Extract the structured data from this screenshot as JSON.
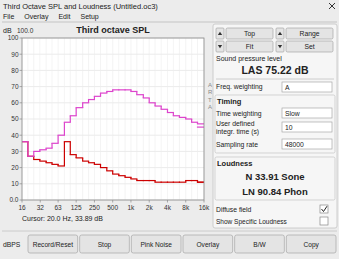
{
  "chart_data": {
    "type": "line",
    "title": "Third octave SPL",
    "ylabel": "dB",
    "log": "x",
    "grid": true,
    "line_style": "steps",
    "x": [
      16,
      20,
      25,
      31.5,
      40,
      50,
      63,
      80,
      100,
      125,
      160,
      200,
      250,
      315,
      400,
      500,
      630,
      800,
      1000,
      1250,
      1600,
      2000,
      2500,
      3150,
      4000,
      5000,
      6300,
      8000,
      10000,
      12500,
      16000
    ],
    "xlim": [
      16,
      16000
    ],
    "xticks": [
      16,
      32,
      63,
      125,
      250,
      500,
      {
        "value": 1000,
        "label": "1k"
      },
      {
        "value": 2000,
        "label": "2k"
      },
      {
        "value": 4000,
        "label": "4k"
      },
      {
        "value": 8000,
        "label": "8k"
      },
      {
        "value": 16000,
        "label": "16k"
      }
    ],
    "ylim": [
      0,
      100
    ],
    "yticks": [
      {
        "value": 0,
        "label": "0.0"
      },
      10,
      20,
      30,
      40,
      50,
      60,
      70,
      80,
      90,
      100
    ],
    "series": [
      {
        "color": "#cc0000",
        "values": [
          36,
          27,
          25,
          24,
          23,
          22,
          21,
          36,
          28,
          26,
          24,
          23,
          22,
          20,
          18,
          16,
          15,
          14,
          13,
          12,
          12,
          12,
          11,
          11,
          11,
          11,
          11,
          12,
          12,
          11,
          11
        ]
      },
      {
        "color": "#dd44cc",
        "values": [
          36,
          27,
          30,
          31,
          32,
          35,
          40,
          48,
          52,
          57,
          60,
          62,
          64,
          66,
          67,
          68,
          68,
          68,
          67,
          65,
          63,
          60,
          58,
          56,
          54,
          52,
          51,
          50,
          48,
          47,
          45
        ]
      }
    ],
    "annotations": [
      "Third Octave SPL and Loudness (Untitled.oc3)",
      "File",
      "Overlay",
      "Edit",
      "Setup",
      "100.0",
      "A\nR\nT\nA",
      "Cursor:   20.0 Hz, 33.89 dB",
      "Top",
      "Range",
      "Fit",
      "Set",
      "Sound pressure level",
      "LAS 75.22 dB",
      "Freq. weighting",
      "A",
      "Timing",
      "Time weighting",
      "Slow",
      "User defined\nintegr. time (s)",
      "10",
      "Sampling rate",
      "48000",
      "Loudness",
      "N 33.91 Sone",
      "LN 90.84 Phon",
      "Diffuse field",
      "Show Specific Loudness",
      "dBPS",
      "Record/Reset",
      "Stop",
      "Pink Noise",
      "Overlay",
      "B/W",
      "Copy"
    ]
  }
}
